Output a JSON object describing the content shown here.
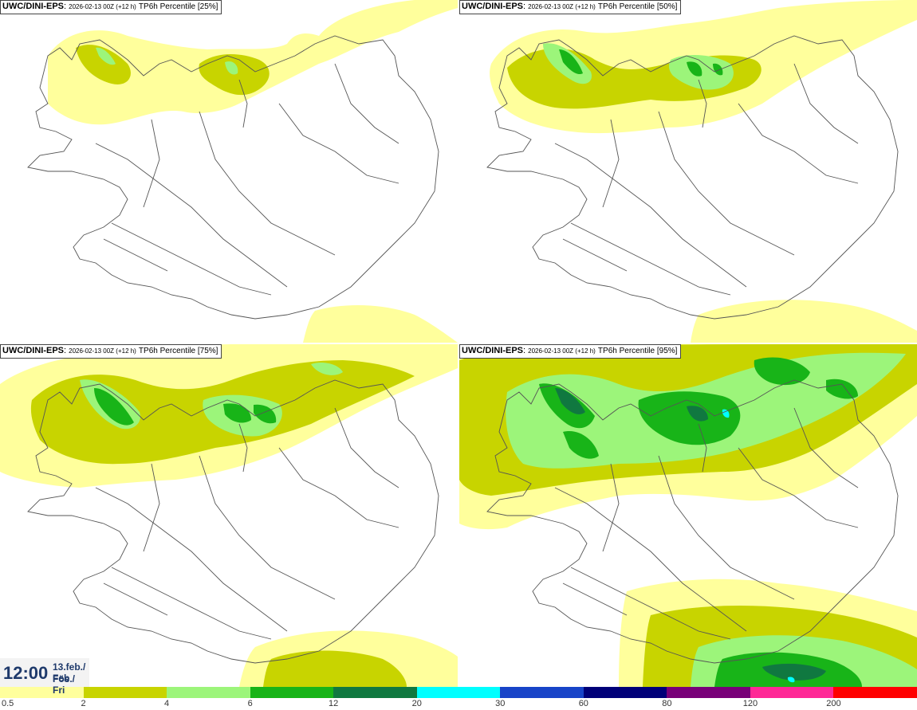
{
  "panels": [
    {
      "model": "UWC/DINI-EPS",
      "run": "2026-02-13 00Z (+12 h)",
      "param": "TP6h Percentile [25%]"
    },
    {
      "model": "UWC/DINI-EPS",
      "run": "2026-02-13 00Z (+12 h)",
      "param": "TP6h Percentile [50%]"
    },
    {
      "model": "UWC/DINI-EPS",
      "run": "2026-02-13 00Z (+12 h)",
      "param": "TP6h Percentile [75%]"
    },
    {
      "model": "UWC/DINI-EPS",
      "run": "2026-02-13 00Z (+12 h)",
      "param": "TP6h Percentile [95%]"
    }
  ],
  "time": {
    "clock": "12:00",
    "date_line": "13.feb./ Feb",
    "day_line": "Fös./ Fri"
  },
  "legend": {
    "colors": [
      "#ffff9c",
      "#c8d400",
      "#9cf57a",
      "#18b418",
      "#107840",
      "#00ffff",
      "#1844c8",
      "#000078",
      "#780078",
      "#ff2896",
      "#ff0000"
    ],
    "labels": [
      "0.5",
      "2",
      "4",
      "6",
      "12",
      "20",
      "30",
      "60",
      "80",
      "120",
      "200"
    ]
  }
}
